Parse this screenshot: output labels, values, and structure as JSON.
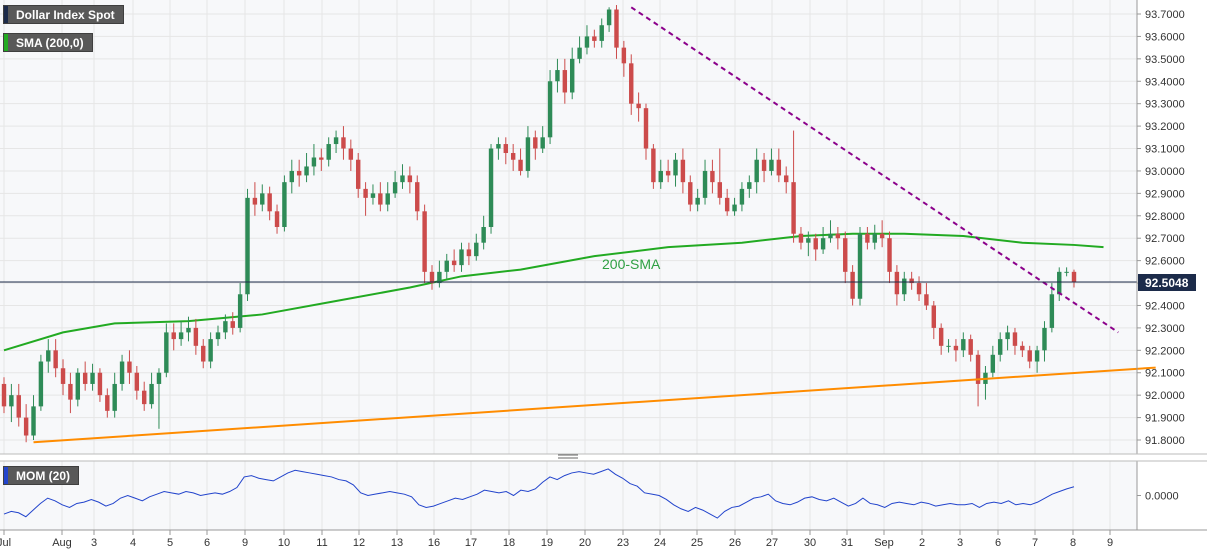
{
  "legend": {
    "main": "Dollar Index Spot",
    "sma": "SMA (200,0)",
    "momentum": "MOM (20)"
  },
  "colors": {
    "up": "#2e8b57",
    "down": "#cc4b4b",
    "sma": "#22aa22",
    "resistance": "#8b008b",
    "support": "#ff8c00",
    "momentum": "#2244cc",
    "last_price_bg": "#1c2b4a",
    "legend_main_strip": "#1c2b4a",
    "legend_sma_strip": "#22aa22",
    "legend_mom_strip": "#2244cc"
  },
  "last_price_label": "92.5048",
  "sma_annotation": "200-SMA",
  "chart_data": [
    {
      "type": "candlestick",
      "title": "Dollar Index Spot",
      "y_ticks": [
        "93.7000",
        "93.6000",
        "93.5000",
        "93.4000",
        "93.3000",
        "93.2000",
        "93.1000",
        "93.0000",
        "92.9000",
        "92.8000",
        "92.7000",
        "92.6000",
        "92.5000",
        "92.4000",
        "92.3000",
        "92.2000",
        "92.1000",
        "92.0000",
        "91.9000",
        "91.8000"
      ],
      "ylim": [
        91.77,
        93.74
      ],
      "x_ticks": [
        "Jul",
        "Aug",
        "3",
        "4",
        "5",
        "6",
        "9",
        "10",
        "11",
        "12",
        "13",
        "16",
        "17",
        "18",
        "19",
        "20",
        "23",
        "24",
        "25",
        "26",
        "27",
        "30",
        "31",
        "Sep",
        "2",
        "3",
        "6",
        "7",
        "8",
        "9"
      ],
      "last_price": 92.5048,
      "candles": [
        [
          92.05,
          91.95,
          92.08,
          91.92
        ],
        [
          91.95,
          92.0,
          92.05,
          91.88
        ],
        [
          92.0,
          91.9,
          92.05,
          91.86
        ],
        [
          91.9,
          91.82,
          91.96,
          91.79
        ],
        [
          91.82,
          91.95,
          92.0,
          91.8
        ],
        [
          91.95,
          92.15,
          92.18,
          91.93
        ],
        [
          92.15,
          92.2,
          92.25,
          92.1
        ],
        [
          92.2,
          92.12,
          92.25,
          92.08
        ],
        [
          92.12,
          92.05,
          92.16,
          92.0
        ],
        [
          92.05,
          91.98,
          92.1,
          91.92
        ],
        [
          91.98,
          92.1,
          92.12,
          91.95
        ],
        [
          92.1,
          92.05,
          92.15,
          92.02
        ],
        [
          92.05,
          92.1,
          92.14,
          92.02
        ],
        [
          92.1,
          92.0,
          92.12,
          91.97
        ],
        [
          92.0,
          91.93,
          92.03,
          91.9
        ],
        [
          91.93,
          92.05,
          92.1,
          91.9
        ],
        [
          92.05,
          92.15,
          92.18,
          92.02
        ],
        [
          92.15,
          92.1,
          92.2,
          92.05
        ],
        [
          92.1,
          92.02,
          92.13,
          91.98
        ],
        [
          92.02,
          91.96,
          92.06,
          91.93
        ],
        [
          91.96,
          92.05,
          92.1,
          91.94
        ],
        [
          92.05,
          92.1,
          92.12,
          91.85
        ],
        [
          92.1,
          92.28,
          92.32,
          92.08
        ],
        [
          92.28,
          92.25,
          92.32,
          92.2
        ],
        [
          92.25,
          92.28,
          92.33,
          92.22
        ],
        [
          92.28,
          92.3,
          92.35,
          92.24
        ],
        [
          92.3,
          92.22,
          92.34,
          92.18
        ],
        [
          92.22,
          92.15,
          92.25,
          92.12
        ],
        [
          92.15,
          92.25,
          92.28,
          92.12
        ],
        [
          92.25,
          92.28,
          92.31,
          92.22
        ],
        [
          92.28,
          92.33,
          92.36,
          92.25
        ],
        [
          92.33,
          92.3,
          92.37,
          92.27
        ],
        [
          92.3,
          92.45,
          92.5,
          92.28
        ],
        [
          92.45,
          92.88,
          92.92,
          92.42
        ],
        [
          92.88,
          92.85,
          92.95,
          92.8
        ],
        [
          92.85,
          92.9,
          92.94,
          92.82
        ],
        [
          92.9,
          92.82,
          92.93,
          92.78
        ],
        [
          92.82,
          92.75,
          92.85,
          92.72
        ],
        [
          92.75,
          92.95,
          92.98,
          92.73
        ],
        [
          92.95,
          93.0,
          93.05,
          92.9
        ],
        [
          93.0,
          92.98,
          93.05,
          92.93
        ],
        [
          92.98,
          93.02,
          93.08,
          92.95
        ],
        [
          93.02,
          93.06,
          93.12,
          92.98
        ],
        [
          93.06,
          93.05,
          93.1,
          93.0
        ],
        [
          93.05,
          93.12,
          93.15,
          93.02
        ],
        [
          93.12,
          93.15,
          93.18,
          93.08
        ],
        [
          93.15,
          93.1,
          93.2,
          93.05
        ],
        [
          93.1,
          93.05,
          93.14,
          93.0
        ],
        [
          93.05,
          92.92,
          93.08,
          92.88
        ],
        [
          92.92,
          92.88,
          92.95,
          92.8
        ],
        [
          92.88,
          92.9,
          92.94,
          92.85
        ],
        [
          92.9,
          92.85,
          92.95,
          92.82
        ],
        [
          92.85,
          92.9,
          92.95,
          92.82
        ],
        [
          92.9,
          92.95,
          93.0,
          92.88
        ],
        [
          92.95,
          92.98,
          93.03,
          92.92
        ],
        [
          92.98,
          92.95,
          93.02,
          92.9
        ],
        [
          92.95,
          92.82,
          92.98,
          92.78
        ],
        [
          92.82,
          92.55,
          92.85,
          92.5
        ],
        [
          92.55,
          92.5,
          92.58,
          92.47
        ],
        [
          92.5,
          92.55,
          92.6,
          92.48
        ],
        [
          92.55,
          92.6,
          92.63,
          92.52
        ],
        [
          92.6,
          92.58,
          92.65,
          92.55
        ],
        [
          92.58,
          92.65,
          92.68,
          92.55
        ],
        [
          92.65,
          92.62,
          92.68,
          92.58
        ],
        [
          92.62,
          92.68,
          92.72,
          92.6
        ],
        [
          92.68,
          92.75,
          92.8,
          92.65
        ],
        [
          92.75,
          93.1,
          93.12,
          92.72
        ],
        [
          93.1,
          93.12,
          93.15,
          93.05
        ],
        [
          93.12,
          93.08,
          93.15,
          93.03
        ],
        [
          93.08,
          93.05,
          93.12,
          93.0
        ],
        [
          93.05,
          93.0,
          93.1,
          92.98
        ],
        [
          93.0,
          93.15,
          93.2,
          92.97
        ],
        [
          93.15,
          93.1,
          93.18,
          93.05
        ],
        [
          93.1,
          93.15,
          93.2,
          93.08
        ],
        [
          93.15,
          93.4,
          93.45,
          93.12
        ],
        [
          93.4,
          93.45,
          93.5,
          93.35
        ],
        [
          93.45,
          93.35,
          93.5,
          93.3
        ],
        [
          93.35,
          93.5,
          93.55,
          93.32
        ],
        [
          93.5,
          93.55,
          93.6,
          93.48
        ],
        [
          93.55,
          93.6,
          93.65,
          93.52
        ],
        [
          93.6,
          93.58,
          93.63,
          93.55
        ],
        [
          93.58,
          93.65,
          93.68,
          93.55
        ],
        [
          93.65,
          93.72,
          93.73,
          93.62
        ],
        [
          93.72,
          93.55,
          93.74,
          93.5
        ],
        [
          93.55,
          93.48,
          93.58,
          93.42
        ],
        [
          93.48,
          93.3,
          93.52,
          93.25
        ],
        [
          93.3,
          93.28,
          93.35,
          93.22
        ],
        [
          93.28,
          93.1,
          93.3,
          93.05
        ],
        [
          93.1,
          92.95,
          93.12,
          92.92
        ],
        [
          92.95,
          93.0,
          93.05,
          92.92
        ],
        [
          93.0,
          92.98,
          93.05,
          92.95
        ],
        [
          92.98,
          93.05,
          93.08,
          92.93
        ],
        [
          93.05,
          92.95,
          93.1,
          92.9
        ],
        [
          92.95,
          92.85,
          92.98,
          92.82
        ],
        [
          92.85,
          92.88,
          92.92,
          92.82
        ],
        [
          92.88,
          93.0,
          93.05,
          92.85
        ],
        [
          93.0,
          92.95,
          93.05,
          92.9
        ],
        [
          92.95,
          92.88,
          93.1,
          92.85
        ],
        [
          92.88,
          92.82,
          92.92,
          92.8
        ],
        [
          92.82,
          92.85,
          92.88,
          92.8
        ],
        [
          92.85,
          92.92,
          92.95,
          92.82
        ],
        [
          92.92,
          92.95,
          92.98,
          92.88
        ],
        [
          92.95,
          93.05,
          93.1,
          92.9
        ],
        [
          93.05,
          93.0,
          93.08,
          92.95
        ],
        [
          93.0,
          93.05,
          93.1,
          92.98
        ],
        [
          93.05,
          92.98,
          93.1,
          92.95
        ],
        [
          92.98,
          92.95,
          93.02,
          92.9
        ],
        [
          92.95,
          92.72,
          93.18,
          92.68
        ],
        [
          92.72,
          92.68,
          92.75,
          92.65
        ],
        [
          92.68,
          92.7,
          92.73,
          92.62
        ],
        [
          92.7,
          92.65,
          92.72,
          92.6
        ],
        [
          92.65,
          92.7,
          92.75,
          92.63
        ],
        [
          92.7,
          92.72,
          92.78,
          92.68
        ],
        [
          92.72,
          92.7,
          92.75,
          92.65
        ],
        [
          92.7,
          92.55,
          92.73,
          92.5
        ],
        [
          92.55,
          92.43,
          92.58,
          92.4
        ],
        [
          92.43,
          92.72,
          92.75,
          92.4
        ],
        [
          92.72,
          92.68,
          92.75,
          92.65
        ],
        [
          92.68,
          92.72,
          92.76,
          92.65
        ],
        [
          92.72,
          92.7,
          92.78,
          92.66
        ],
        [
          92.7,
          92.55,
          92.73,
          92.5
        ],
        [
          92.55,
          92.45,
          92.58,
          92.4
        ],
        [
          92.45,
          92.52,
          92.55,
          92.42
        ],
        [
          92.52,
          92.5,
          92.55,
          92.47
        ],
        [
          92.5,
          92.45,
          92.53,
          92.42
        ],
        [
          92.45,
          92.4,
          92.5,
          92.38
        ],
        [
          92.4,
          92.3,
          92.42,
          92.25
        ],
        [
          92.3,
          92.22,
          92.32,
          92.18
        ],
        [
          92.22,
          92.22,
          92.25,
          92.19
        ],
        [
          92.22,
          92.2,
          92.25,
          92.15
        ],
        [
          92.2,
          92.25,
          92.28,
          92.17
        ],
        [
          92.25,
          92.18,
          92.27,
          92.15
        ],
        [
          92.18,
          92.05,
          92.2,
          91.95
        ],
        [
          92.05,
          92.1,
          92.13,
          91.98
        ],
        [
          92.1,
          92.18,
          92.22,
          92.08
        ],
        [
          92.18,
          92.25,
          92.28,
          92.15
        ],
        [
          92.25,
          92.28,
          92.31,
          92.2
        ],
        [
          92.28,
          92.22,
          92.3,
          92.18
        ],
        [
          92.22,
          92.2,
          92.24,
          92.17
        ],
        [
          92.2,
          92.15,
          92.22,
          92.12
        ],
        [
          92.15,
          92.2,
          92.22,
          92.1
        ],
        [
          92.2,
          92.3,
          92.33,
          92.15
        ],
        [
          92.3,
          92.45,
          92.5,
          92.28
        ],
        [
          92.45,
          92.55,
          92.57,
          92.42
        ],
        [
          92.55,
          92.55,
          92.57,
          92.53
        ],
        [
          92.55,
          92.5048,
          92.56,
          92.48
        ]
      ]
    },
    {
      "type": "line",
      "name": "SMA (200,0)",
      "points": [
        [
          0,
          92.2
        ],
        [
          8,
          92.28
        ],
        [
          15,
          92.32
        ],
        [
          25,
          92.33
        ],
        [
          35,
          92.36
        ],
        [
          45,
          92.42
        ],
        [
          55,
          92.48
        ],
        [
          62,
          92.53
        ],
        [
          70,
          92.56
        ],
        [
          80,
          92.62
        ],
        [
          90,
          92.66
        ],
        [
          100,
          92.68
        ],
        [
          108,
          92.71
        ],
        [
          115,
          92.72
        ],
        [
          122,
          92.72
        ],
        [
          130,
          92.71
        ],
        [
          138,
          92.68
        ],
        [
          145,
          92.67
        ],
        [
          149,
          92.66
        ]
      ]
    },
    {
      "type": "line",
      "name": "resistance",
      "points": [
        [
          85,
          93.73
        ],
        [
          151,
          92.28
        ]
      ]
    },
    {
      "type": "line",
      "name": "support",
      "points": [
        [
          4,
          91.79
        ],
        [
          152,
          92.12
        ]
      ]
    },
    {
      "type": "line",
      "title": "MOM (20)",
      "y_ticks": [
        "0.0000"
      ],
      "ylim": [
        -1.3,
        1.3
      ],
      "values": [
        -0.7,
        -0.6,
        -0.65,
        -0.8,
        -0.55,
        -0.3,
        -0.1,
        -0.2,
        -0.35,
        -0.45,
        -0.3,
        -0.25,
        -0.15,
        -0.25,
        -0.4,
        -0.3,
        -0.1,
        0.0,
        -0.1,
        -0.2,
        -0.05,
        0.05,
        0.15,
        0.1,
        0.05,
        0.15,
        0.1,
        0.0,
        0.05,
        0.1,
        0.05,
        0.15,
        0.3,
        0.7,
        0.75,
        0.65,
        0.6,
        0.55,
        0.7,
        0.85,
        0.95,
        0.9,
        0.85,
        0.8,
        0.75,
        0.7,
        0.6,
        0.55,
        0.4,
        0.1,
        0.0,
        0.05,
        0.1,
        0.15,
        0.1,
        0.05,
        -0.05,
        -0.35,
        -0.45,
        -0.4,
        -0.3,
        -0.2,
        -0.1,
        -0.15,
        -0.05,
        0.05,
        0.2,
        0.15,
        0.1,
        0.15,
        0.0,
        0.2,
        0.15,
        0.25,
        0.5,
        0.7,
        0.6,
        0.75,
        0.85,
        0.9,
        0.85,
        0.8,
        0.9,
        1.0,
        0.8,
        0.65,
        0.45,
        0.35,
        0.1,
        0.05,
        0.0,
        -0.15,
        -0.35,
        -0.5,
        -0.6,
        -0.45,
        -0.55,
        -0.7,
        -0.85,
        -0.6,
        -0.45,
        -0.4,
        -0.25,
        -0.1,
        -0.05,
        0.05,
        -0.2,
        -0.3,
        -0.35,
        -0.25,
        -0.1,
        -0.05,
        -0.15,
        -0.2,
        -0.1,
        -0.25,
        -0.4,
        -0.3,
        -0.1,
        -0.3,
        -0.35,
        -0.45,
        -0.3,
        -0.25,
        -0.3,
        -0.35,
        -0.25,
        -0.3,
        -0.4,
        -0.35,
        -0.3,
        -0.35,
        -0.35,
        -0.3,
        -0.45,
        -0.3,
        -0.25,
        -0.3,
        -0.2,
        -0.35,
        -0.3,
        -0.35,
        -0.25,
        -0.1,
        0.05,
        0.15,
        0.25,
        0.33
      ]
    }
  ]
}
